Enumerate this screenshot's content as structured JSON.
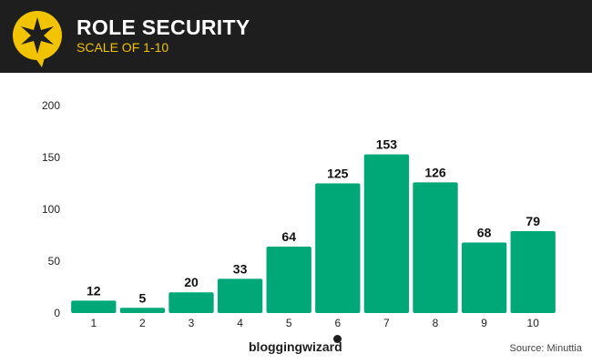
{
  "header": {
    "title": "ROLE SECURITY",
    "subtitle": "SCALE OF 1-10",
    "logo_icon": "compass-star-speech-bubble-icon"
  },
  "footer": {
    "brand": "bloggingwizard",
    "source": "Source: Minuttia"
  },
  "colors": {
    "header_bg": "#1e1e1e",
    "accent": "#f2c300",
    "bar": "#00a878"
  },
  "chart_data": {
    "type": "bar",
    "categories": [
      "1",
      "2",
      "3",
      "4",
      "5",
      "6",
      "7",
      "8",
      "9",
      "10"
    ],
    "values": [
      12,
      5,
      20,
      33,
      64,
      125,
      153,
      126,
      68,
      79
    ],
    "title": "",
    "xlabel": "",
    "ylabel": "",
    "ylim": [
      0,
      200
    ],
    "yticks": [
      0,
      50,
      100,
      150,
      200
    ],
    "grid": false,
    "data_labels": true
  }
}
